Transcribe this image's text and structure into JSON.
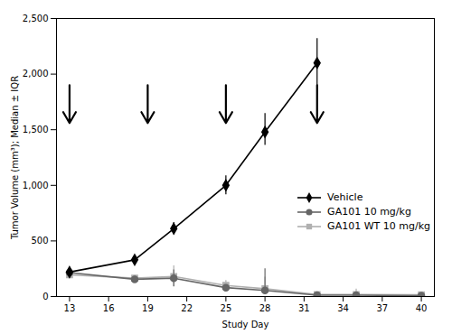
{
  "chart_data": {
    "type": "line",
    "xlabel": "Study Day",
    "ylabel": "Tumor Volume (mm³); Median ± IQR",
    "xlim": [
      12,
      41
    ],
    "ylim": [
      0,
      2500
    ],
    "xticks": [
      13,
      16,
      19,
      22,
      25,
      28,
      31,
      34,
      37,
      40
    ],
    "yticks": [
      0,
      500,
      1000,
      1500,
      2000,
      2500
    ],
    "grid": false,
    "legend": "lower right",
    "series": [
      {
        "name": "Vehicle",
        "color": "#000000",
        "marker": "diamond",
        "x": [
          13,
          18,
          21,
          25,
          28,
          32
        ],
        "values": [
          220,
          330,
          610,
          1000,
          1480,
          2100
        ],
        "error_lo": [
          5,
          30,
          55,
          85,
          120,
          290
        ],
        "error_hi": [
          5,
          30,
          55,
          85,
          165,
          220
        ]
      },
      {
        "name": "GA101 10 mg/kg",
        "color": "#666666",
        "marker": "circle",
        "x": [
          13,
          18,
          21,
          25,
          28,
          32,
          35,
          40
        ],
        "values": [
          215,
          155,
          165,
          80,
          55,
          12,
          12,
          8
        ],
        "error_lo": [
          10,
          25,
          75,
          18,
          35,
          5,
          5,
          3
        ],
        "error_hi": [
          10,
          25,
          75,
          18,
          195,
          5,
          28,
          3
        ]
      },
      {
        "name": "GA101 WT 10 mg/kg",
        "color": "#b0b0b0",
        "marker": "square",
        "x": [
          13,
          18,
          21,
          25,
          28,
          32,
          35,
          40
        ],
        "values": [
          195,
          165,
          180,
          100,
          70,
          18,
          18,
          15
        ],
        "error_lo": [
          10,
          25,
          95,
          45,
          45,
          5,
          5,
          3
        ],
        "error_hi": [
          10,
          25,
          95,
          45,
          105,
          5,
          48,
          3
        ]
      }
    ],
    "arrows": [
      {
        "x": 13,
        "y_from": 1900,
        "y_to": 1560
      },
      {
        "x": 19,
        "y_from": 1900,
        "y_to": 1560
      },
      {
        "x": 25,
        "y_from": 1900,
        "y_to": 1560
      },
      {
        "x": 32,
        "y_from": 1900,
        "y_to": 1560
      }
    ]
  }
}
